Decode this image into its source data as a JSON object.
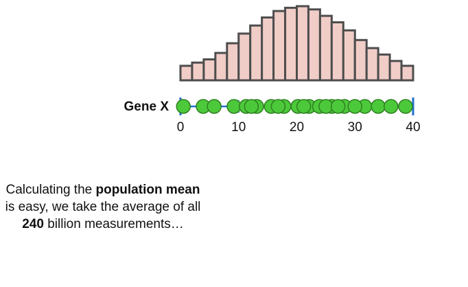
{
  "chart_data": {
    "type": "bar",
    "categories": [
      "0-2",
      "2-4",
      "4-6",
      "6-8",
      "8-10",
      "10-12",
      "12-14",
      "14-16",
      "16-18",
      "18-20",
      "20-22",
      "22-24",
      "24-26",
      "26-28",
      "28-30",
      "30-32",
      "32-34",
      "34-36",
      "36-38",
      "38-40"
    ],
    "values": [
      9,
      11,
      13,
      17,
      23,
      29,
      34,
      39,
      43,
      45,
      46,
      44,
      40,
      36,
      31,
      25,
      20,
      16,
      12,
      9
    ],
    "bar_color": "#f1cdc8",
    "bar_edge_color": "#4d4d4d",
    "axis": {
      "label": "Gene X",
      "range": [
        0,
        40
      ],
      "ticks": [
        "0",
        "10",
        "20",
        "30",
        "40"
      ],
      "tick_values": [
        0,
        10,
        20,
        30,
        40
      ],
      "color": "#1f6fd1"
    },
    "points": {
      "color": "#4cc93a",
      "edge_color": "#2f7f22",
      "x": [
        0.5,
        3.9,
        5.8,
        9.2,
        11.3,
        13.1,
        15.6,
        17.8,
        20.2,
        22.1,
        23.9,
        26.0,
        28.2,
        31.7,
        34.0,
        36.2,
        38.7,
        12.2,
        16.8,
        21.2,
        25.0,
        27.1,
        30.0
      ]
    }
  },
  "caption": {
    "t1": "Calculating the ",
    "b1": "population mean",
    "t2": " is easy, we take the average of all ",
    "b2": "240",
    "t3": " billion measurements…"
  }
}
